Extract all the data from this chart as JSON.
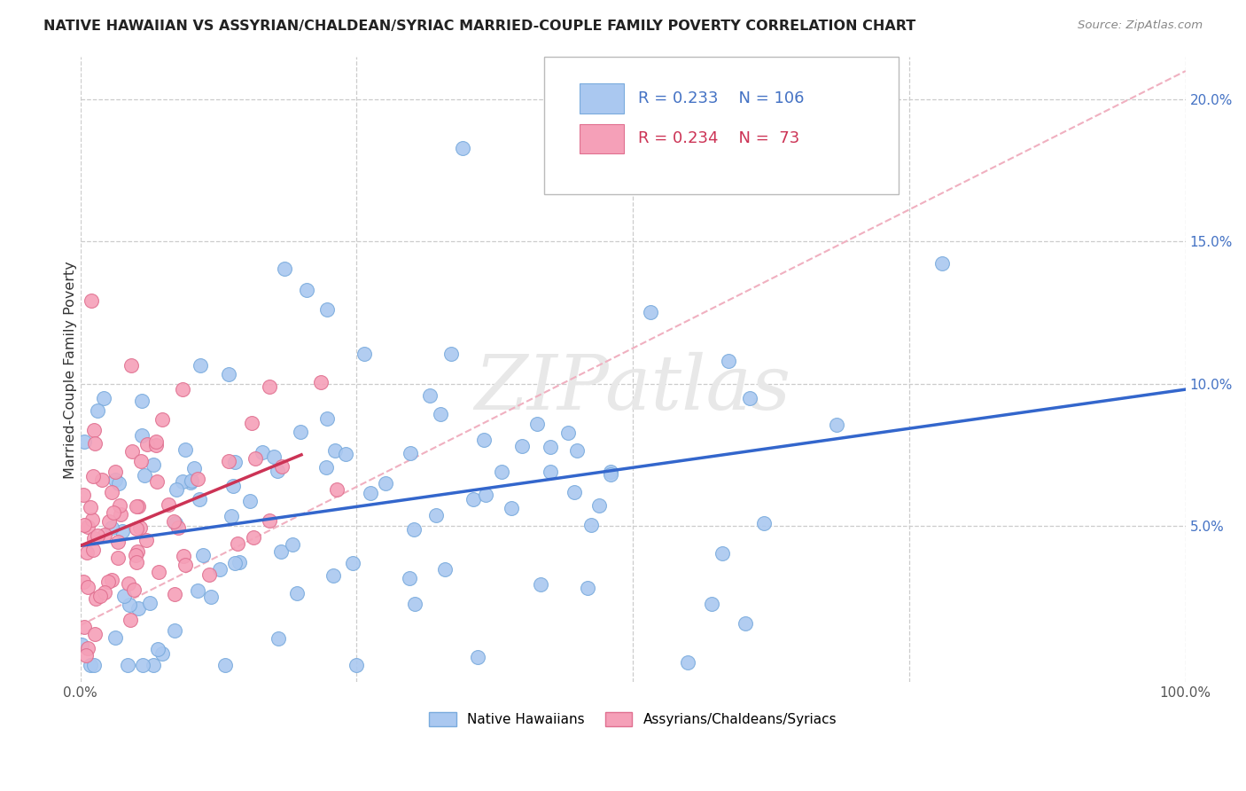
{
  "title": "NATIVE HAWAIIAN VS ASSYRIAN/CHALDEAN/SYRIAC MARRIED-COUPLE FAMILY POVERTY CORRELATION CHART",
  "source": "Source: ZipAtlas.com",
  "ylabel": "Married-Couple Family Poverty",
  "xlim": [
    0.0,
    1.0
  ],
  "ylim": [
    -0.005,
    0.215
  ],
  "yticks": [
    0.05,
    0.1,
    0.15,
    0.2
  ],
  "yticklabels": [
    "5.0%",
    "10.0%",
    "15.0%",
    "20.0%"
  ],
  "xtick_vals": [
    0.0,
    0.25,
    0.5,
    0.75,
    1.0
  ],
  "xticklabels": [
    "0.0%",
    "",
    "",
    "",
    "100.0%"
  ],
  "legend_r_blue": "0.233",
  "legend_n_blue": "106",
  "legend_r_pink": "0.234",
  "legend_n_pink": "73",
  "blue_dot_color": "#aac8f0",
  "blue_dot_edge": "#7aabdd",
  "pink_dot_color": "#f5a0b8",
  "pink_dot_edge": "#e07090",
  "blue_line_color": "#3366cc",
  "pink_line_color": "#cc3355",
  "dashed_line_color": "#f0b0c0",
  "trendline_blue_x0": 0.0,
  "trendline_blue_y0": 0.043,
  "trendline_blue_x1": 1.0,
  "trendline_blue_y1": 0.098,
  "trendline_pink_x0": 0.0,
  "trendline_pink_y0": 0.043,
  "trendline_pink_x1": 0.2,
  "trendline_pink_y1": 0.075,
  "dashed_line_x0": 0.0,
  "dashed_line_y0": 0.015,
  "dashed_line_x1": 1.0,
  "dashed_line_y1": 0.21,
  "watermark_text": "ZIPatlas",
  "watermark_color": "#e8e8e8",
  "grid_color": "#cccccc",
  "grid_style": "--",
  "background_color": "#ffffff",
  "tick_color": "#4472c4",
  "legend_label_blue": "Native Hawaiians",
  "legend_label_pink": "Assyrians/Chaldeans/Syriacs"
}
